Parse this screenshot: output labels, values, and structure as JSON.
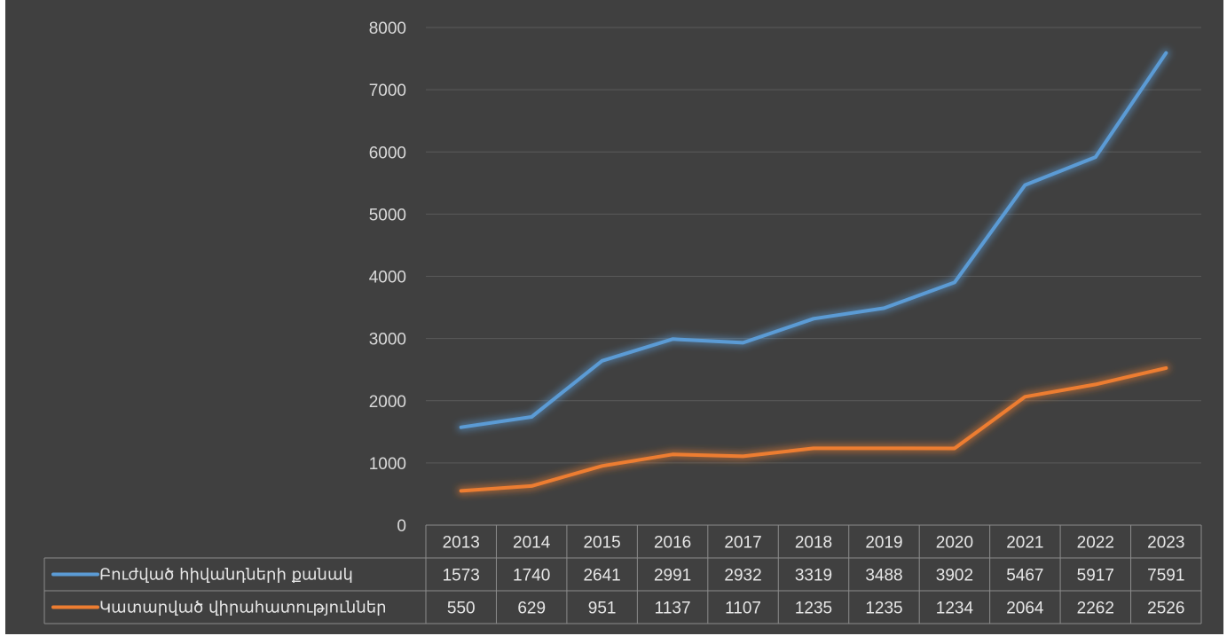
{
  "chart_data": {
    "type": "line",
    "categories": [
      "2013",
      "2014",
      "2015",
      "2016",
      "2017",
      "2018",
      "2019",
      "2020",
      "2021",
      "2022",
      "2023"
    ],
    "series": [
      {
        "name": "Բուժված հիվանդների քանակ",
        "color": "#5b9bd5",
        "values": [
          1573,
          1740,
          2641,
          2991,
          2932,
          3319,
          3488,
          3902,
          5467,
          5917,
          7591
        ]
      },
      {
        "name": "Կատարված վիրահատություններ",
        "color": "#ed7d31",
        "values": [
          550,
          629,
          951,
          1137,
          1107,
          1235,
          1235,
          1234,
          2064,
          2262,
          2526
        ]
      }
    ],
    "yticks": [
      "0",
      "1000",
      "2000",
      "3000",
      "4000",
      "5000",
      "6000",
      "7000",
      "8000"
    ],
    "ylim": [
      0,
      8000
    ],
    "grid": true,
    "legend": "data-table"
  }
}
